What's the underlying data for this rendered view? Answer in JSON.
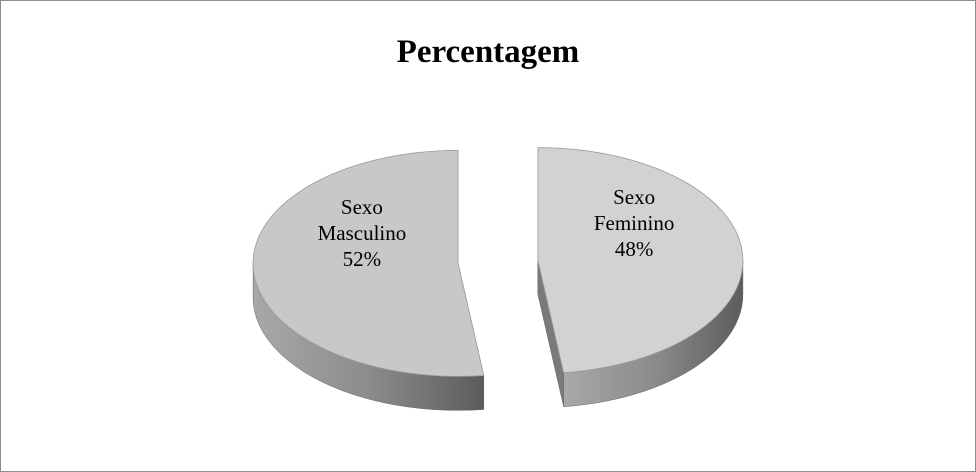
{
  "chart_data": {
    "type": "pie",
    "title": "Percentagem",
    "categories": [
      "Sexo Masculino",
      "Sexo Feminino"
    ],
    "values": [
      52,
      48
    ],
    "value_labels": [
      "52%",
      "48%"
    ],
    "colors": [
      "#c8c8c8",
      "#d2d2d2"
    ],
    "three_d": true,
    "exploded": true
  }
}
